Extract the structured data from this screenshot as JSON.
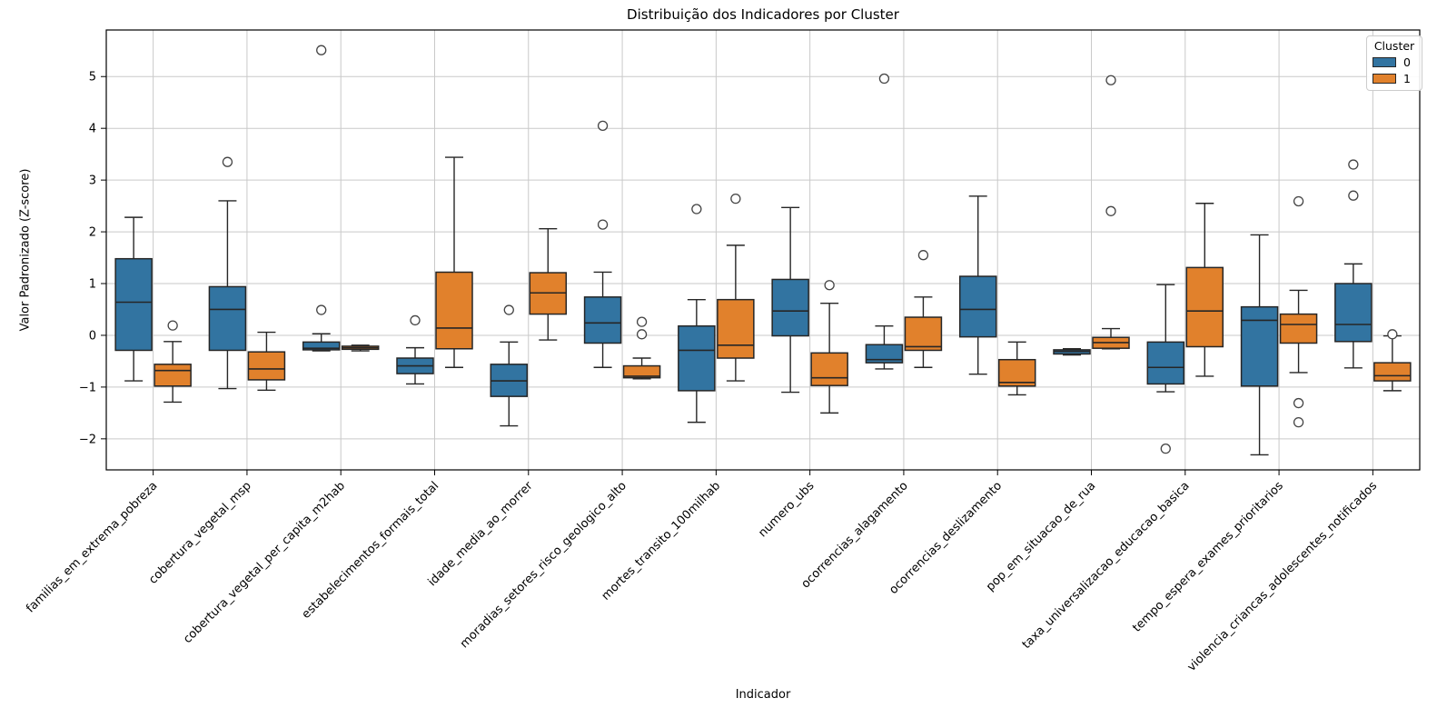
{
  "chart_data": {
    "type": "box",
    "title": "Distribuição dos Indicadores por Cluster",
    "xlabel": "Indicador",
    "ylabel": "Valor Padronizado (Z-score)",
    "ylim": [
      -2.6,
      5.9
    ],
    "grid": true,
    "yticks": [
      {
        "value": 5,
        "label": "5"
      },
      {
        "value": 4,
        "label": "4"
      },
      {
        "value": 3,
        "label": "3"
      },
      {
        "value": 2,
        "label": "2"
      },
      {
        "value": 1,
        "label": "1"
      },
      {
        "value": 0,
        "label": "0"
      },
      {
        "value": -1,
        "label": "−1"
      },
      {
        "value": -2,
        "label": "−2"
      }
    ],
    "legend": {
      "title": "Cluster",
      "position": "upper right",
      "entries": [
        {
          "label": "0",
          "color": "#3274A1"
        },
        {
          "label": "1",
          "color": "#E1812C"
        }
      ]
    },
    "categories": [
      "familias_em_extrema_pobreza",
      "cobertura_vegetal_msp",
      "cobertura_vegetal_per_capita_m2hab",
      "estabelecimentos_formais_total",
      "idade_media_ao_morrer",
      "moradias_setores_risco_geologico_alto",
      "mortes_transito_100milhab",
      "numero_ubs",
      "ocorrencias_alagamento",
      "ocorrencias_deslizamento",
      "pop_em_situacao_de_rua",
      "taxa_universalizacao_educacao_basica",
      "tempo_espera_exames_prioritarios",
      "violencia_criancas_adolescentes_notificados"
    ],
    "series": [
      {
        "name": "0",
        "color": "#3274A1",
        "boxes": [
          {
            "whislo": -0.88,
            "q1": -0.29,
            "med": 0.64,
            "q3": 1.48,
            "whishi": 2.28,
            "outliers": []
          },
          {
            "whislo": -1.03,
            "q1": -0.29,
            "med": 0.5,
            "q3": 0.94,
            "whishi": 2.6,
            "outliers": [
              3.35
            ]
          },
          {
            "whislo": -0.3,
            "q1": -0.28,
            "med": -0.25,
            "q3": -0.13,
            "whishi": 0.03,
            "outliers": [
              0.49,
              5.51
            ]
          },
          {
            "whislo": -0.94,
            "q1": -0.74,
            "med": -0.59,
            "q3": -0.44,
            "whishi": -0.24,
            "outliers": [
              0.29
            ]
          },
          {
            "whislo": -1.75,
            "q1": -1.18,
            "med": -0.88,
            "q3": -0.56,
            "whishi": -0.13,
            "outliers": [
              0.49
            ]
          },
          {
            "whislo": -0.62,
            "q1": -0.15,
            "med": 0.24,
            "q3": 0.74,
            "whishi": 1.22,
            "outliers": [
              2.14,
              4.05
            ]
          },
          {
            "whislo": -1.68,
            "q1": -1.07,
            "med": -0.29,
            "q3": 0.18,
            "whishi": 0.69,
            "outliers": [
              2.44
            ]
          },
          {
            "whislo": -1.1,
            "q1": -0.01,
            "med": 0.47,
            "q3": 1.08,
            "whishi": 2.47,
            "outliers": []
          },
          {
            "whislo": -0.65,
            "q1": -0.53,
            "med": -0.47,
            "q3": -0.18,
            "whishi": 0.18,
            "outliers": [
              4.96
            ]
          },
          {
            "whislo": -0.75,
            "q1": -0.03,
            "med": 0.5,
            "q3": 1.14,
            "whishi": 2.69,
            "outliers": []
          },
          {
            "whislo": -0.38,
            "q1": -0.36,
            "med": -0.31,
            "q3": -0.28,
            "whishi": -0.26,
            "outliers": []
          },
          {
            "whislo": -1.09,
            "q1": -0.94,
            "med": -0.62,
            "q3": -0.13,
            "whishi": 0.98,
            "outliers": [
              -2.19
            ]
          },
          {
            "whislo": -2.31,
            "q1": -0.98,
            "med": 0.29,
            "q3": 0.55,
            "whishi": 1.94,
            "outliers": []
          },
          {
            "whislo": -0.63,
            "q1": -0.12,
            "med": 0.21,
            "q3": 1.0,
            "whishi": 1.38,
            "outliers": [
              2.7,
              3.3
            ]
          }
        ]
      },
      {
        "name": "1",
        "color": "#E1812C",
        "boxes": [
          {
            "whislo": -1.29,
            "q1": -0.98,
            "med": -0.68,
            "q3": -0.56,
            "whishi": -0.12,
            "outliers": [
              0.19
            ]
          },
          {
            "whislo": -1.06,
            "q1": -0.86,
            "med": -0.65,
            "q3": -0.32,
            "whishi": 0.06,
            "outliers": []
          },
          {
            "whislo": -0.3,
            "q1": -0.27,
            "med": -0.24,
            "q3": -0.21,
            "whishi": -0.19,
            "outliers": []
          },
          {
            "whislo": -0.62,
            "q1": -0.26,
            "med": 0.14,
            "q3": 1.22,
            "whishi": 3.44,
            "outliers": []
          },
          {
            "whislo": -0.09,
            "q1": 0.41,
            "med": 0.82,
            "q3": 1.21,
            "whishi": 2.06,
            "outliers": []
          },
          {
            "whislo": -0.84,
            "q1": -0.82,
            "med": -0.79,
            "q3": -0.59,
            "whishi": -0.44,
            "outliers": [
              0.02,
              0.26
            ]
          },
          {
            "whislo": -0.88,
            "q1": -0.44,
            "med": -0.19,
            "q3": 0.69,
            "whishi": 1.74,
            "outliers": [
              2.64
            ]
          },
          {
            "whislo": -1.5,
            "q1": -0.97,
            "med": -0.82,
            "q3": -0.34,
            "whishi": 0.62,
            "outliers": [
              0.97
            ]
          },
          {
            "whislo": -0.62,
            "q1": -0.29,
            "med": -0.22,
            "q3": 0.35,
            "whishi": 0.74,
            "outliers": [
              1.55
            ]
          },
          {
            "whislo": -1.15,
            "q1": -0.98,
            "med": -0.91,
            "q3": -0.47,
            "whishi": -0.13,
            "outliers": []
          },
          {
            "whislo": -0.26,
            "q1": -0.25,
            "med": -0.14,
            "q3": -0.04,
            "whishi": 0.13,
            "outliers": [
              2.4,
              4.93
            ]
          },
          {
            "whislo": -0.79,
            "q1": -0.22,
            "med": 0.47,
            "q3": 1.31,
            "whishi": 2.55,
            "outliers": []
          },
          {
            "whislo": -0.72,
            "q1": -0.15,
            "med": 0.21,
            "q3": 0.41,
            "whishi": 0.87,
            "outliers": [
              2.59,
              -1.31,
              -1.68
            ]
          },
          {
            "whislo": -1.07,
            "q1": -0.88,
            "med": -0.78,
            "q3": -0.53,
            "whishi": -0.01,
            "outliers": [
              0.02
            ]
          }
        ]
      }
    ],
    "style": {
      "edge_color": "#262626",
      "grid_color": "#c9c9c9",
      "spine_color": "#000000",
      "flier_edge_color": "#444444",
      "background": "#ffffff"
    }
  }
}
